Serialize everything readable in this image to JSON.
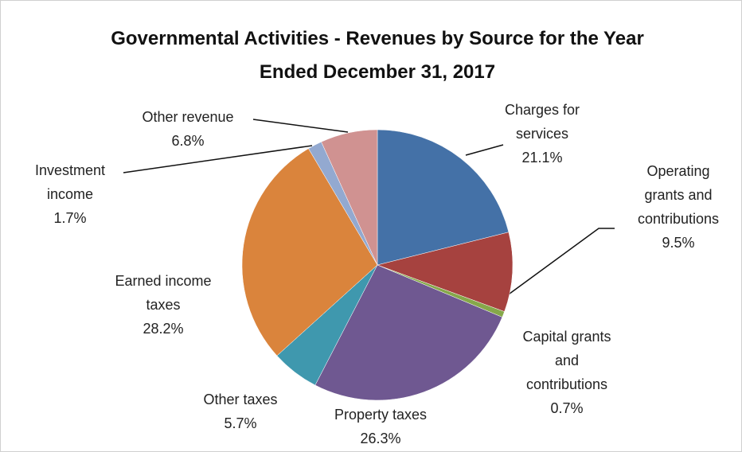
{
  "chart_data": {
    "type": "pie",
    "title": "Governmental Activities - Revenues by Source for the Year Ended December 31, 2017",
    "categories": [
      "Charges for services",
      "Operating grants and contributions",
      "Capital grants and contributions",
      "Property taxes",
      "Other taxes",
      "Earned income taxes",
      "Investment income",
      "Other revenue"
    ],
    "values": [
      21.1,
      9.5,
      0.7,
      26.3,
      5.7,
      28.2,
      1.7,
      6.8
    ],
    "value_labels": [
      "21.1%",
      "9.5%",
      "0.7%",
      "26.3%",
      "5.7%",
      "28.2%",
      "1.7%",
      "6.8%"
    ],
    "colors": [
      "#4471a7",
      "#a6423f",
      "#86a84a",
      "#6f5891",
      "#3f98ae",
      "#da843c",
      "#93a9d0",
      "#d09291"
    ]
  }
}
